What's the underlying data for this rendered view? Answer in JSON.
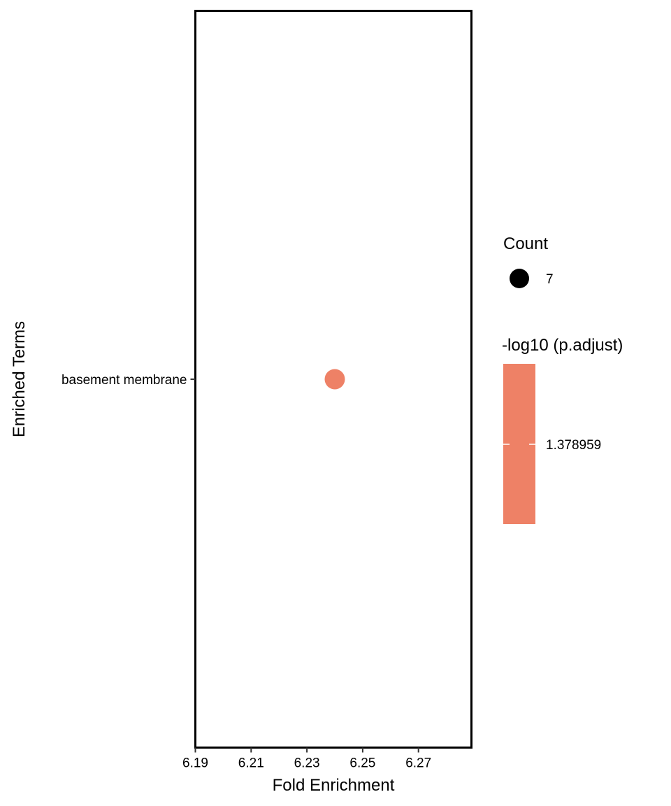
{
  "chart_data": {
    "type": "scatter",
    "xlabel": "Fold Enrichment",
    "ylabel": "Enriched Terms",
    "xlim": [
      6.19,
      6.289
    ],
    "x_ticks": [
      "6.19",
      "6.21",
      "6.23",
      "6.25",
      "6.27"
    ],
    "categories": [
      "basement membrane"
    ],
    "points": [
      {
        "term": "basement membrane",
        "x": 6.24,
        "count": 7,
        "neg_log10_padj": 1.378959
      }
    ],
    "grid": false,
    "legend_position": "right",
    "colors": {
      "point": "#ee8166",
      "colorbar": "#ee8166",
      "size_key": "#000000",
      "axis": "#000000"
    },
    "legend": {
      "size_title": "Count",
      "size_labels": [
        "7"
      ],
      "color_title": "-log10 (p.adjust)",
      "color_labels": [
        "1.378959"
      ]
    }
  }
}
